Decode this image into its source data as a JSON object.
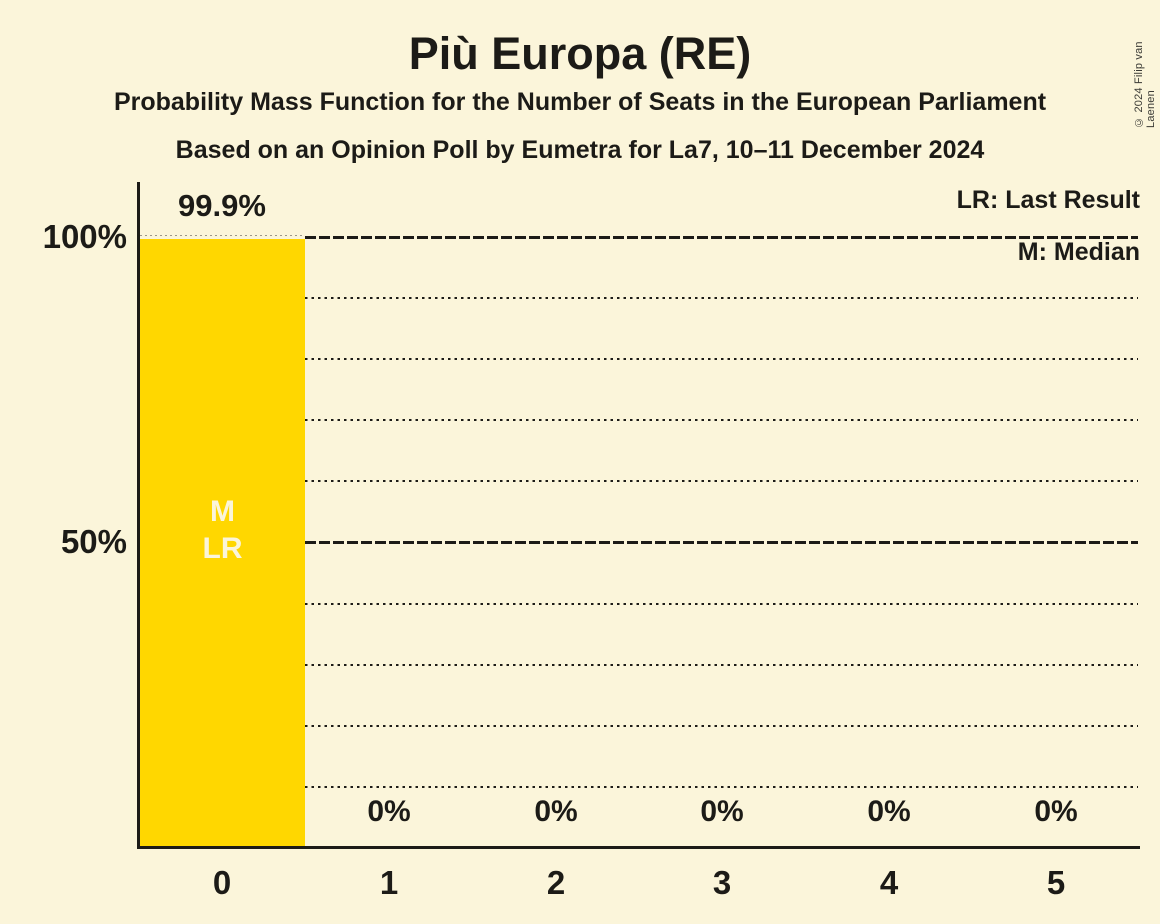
{
  "title": "Più Europa (RE)",
  "subtitle1": "Probability Mass Function for the Number of Seats in the European Parliament",
  "subtitle2": "Based on an Opinion Poll by Eumetra for La7, 10–11 December 2024",
  "copyright": "© 2024 Filip van Laenen",
  "legend": {
    "lr": "LR: Last Result",
    "m": "M: Median"
  },
  "y_axis": {
    "labels": [
      "100%",
      "50%"
    ]
  },
  "colors": {
    "background": "#FBF5DA",
    "bar": "#FFD700",
    "text": "#1C1B17",
    "bar_label": "#FBF5DA"
  },
  "chart_data": {
    "type": "bar",
    "title": "Più Europa (RE)",
    "categories": [
      "0",
      "1",
      "2",
      "3",
      "4",
      "5"
    ],
    "values": [
      99.9,
      0,
      0,
      0,
      0,
      0
    ],
    "value_labels": [
      "99.9%",
      "0%",
      "0%",
      "0%",
      "0%",
      "0%"
    ],
    "ylim": [
      0,
      100
    ],
    "ytick_solid_percent": [
      50,
      100
    ],
    "ytick_dotted_percent": [
      10,
      20,
      30,
      40,
      60,
      70,
      80,
      90
    ],
    "grid": true,
    "legend_position": "top-right",
    "bar_inner_labels": [
      "M",
      "LR"
    ],
    "median_seat": "0",
    "last_result_seat": "0"
  }
}
